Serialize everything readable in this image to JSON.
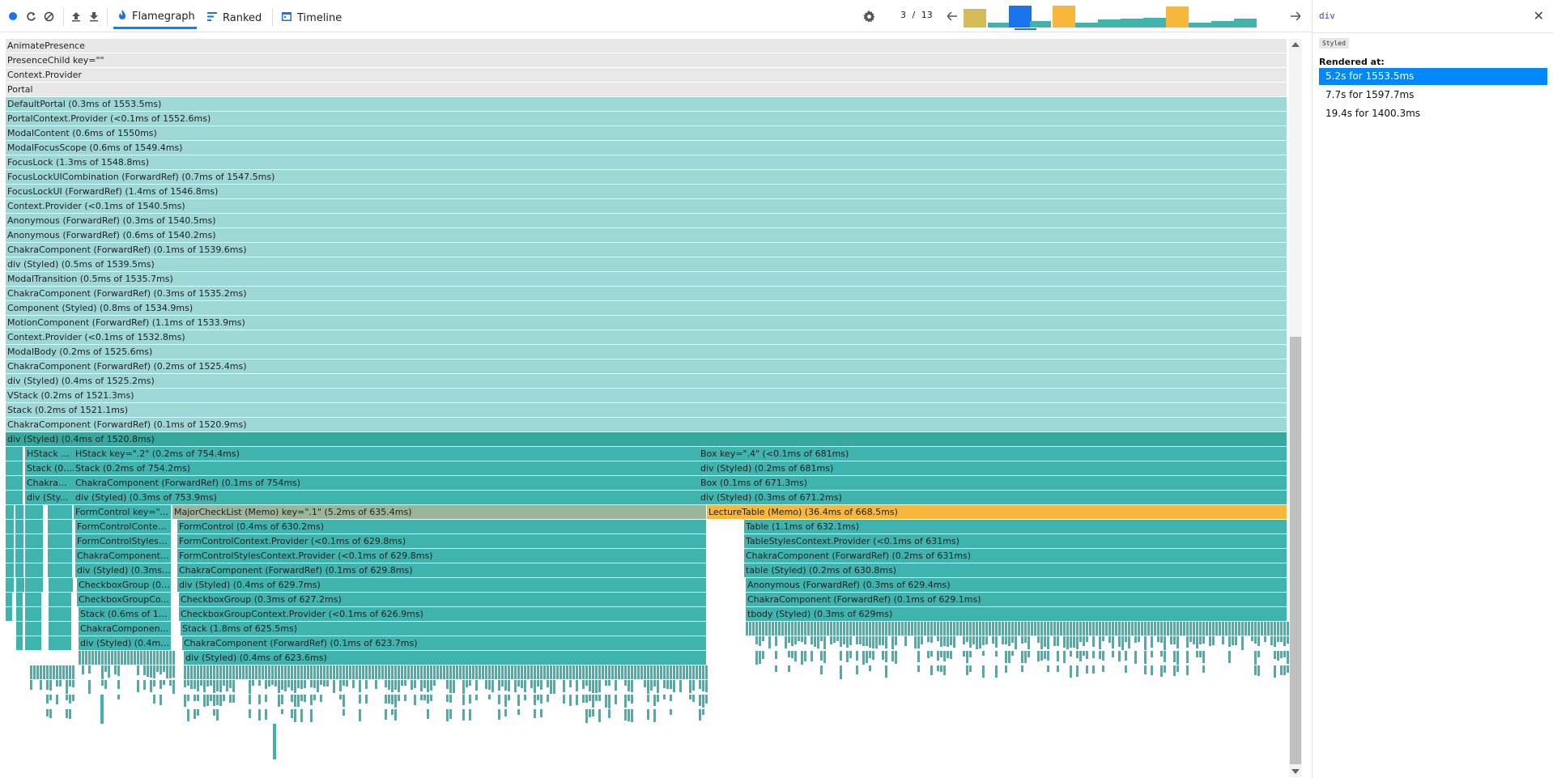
{
  "toolbar": {
    "tabs": [
      {
        "label": "Flamegraph",
        "active": true
      },
      {
        "label": "Ranked",
        "active": false
      },
      {
        "label": "Timeline",
        "active": false
      }
    ],
    "commit_index": "3",
    "commit_separator": "/",
    "commit_total": "13",
    "accent": "#0088fa"
  },
  "commit_bars": [
    {
      "color": "#d4bb5a",
      "level": 0.8
    },
    {
      "color": "#3fb3ad",
      "level": 0.1
    },
    {
      "color": "#1a73e8",
      "level": 0.95
    },
    {
      "color": "#3fb3ad",
      "level": 0.15
    },
    {
      "color": "#f6b73c",
      "level": 0.95
    },
    {
      "color": "#3fb3ad",
      "level": 0.1
    },
    {
      "color": "#3fb3ad",
      "level": 0.25
    },
    {
      "color": "#3fb3ad",
      "level": 0.3
    },
    {
      "color": "#3fb3ad",
      "level": 0.35
    },
    {
      "color": "#f6b73c",
      "level": 0.9
    },
    {
      "color": "#3fb3ad",
      "level": 0.1
    },
    {
      "color": "#3fb3ad",
      "level": 0.15
    },
    {
      "color": "#3fb3ad",
      "level": 0.3
    }
  ],
  "flame": {
    "full_rows": [
      {
        "label": "AnimatePresence",
        "style": "gray"
      },
      {
        "label": "PresenceChild key=\"\"",
        "style": "gray"
      },
      {
        "label": "Context.Provider",
        "style": "gray"
      },
      {
        "label": "Portal",
        "style": "gray"
      },
      {
        "label": "DefaultPortal (0.3ms of 1553.5ms)",
        "style": "light"
      },
      {
        "label": "PortalContext.Provider (<0.1ms of 1552.6ms)",
        "style": "light"
      },
      {
        "label": "ModalContent (0.6ms of 1550ms)",
        "style": "light"
      },
      {
        "label": "ModalFocusScope (0.6ms of 1549.4ms)",
        "style": "light"
      },
      {
        "label": "FocusLock (1.3ms of 1548.8ms)",
        "style": "light"
      },
      {
        "label": "FocusLockUICombination (ForwardRef) (0.7ms of 1547.5ms)",
        "style": "light"
      },
      {
        "label": "FocusLockUI (ForwardRef) (1.4ms of 1546.8ms)",
        "style": "light"
      },
      {
        "label": "Context.Provider (<0.1ms of 1540.5ms)",
        "style": "light"
      },
      {
        "label": "Anonymous (ForwardRef) (0.3ms of 1540.5ms)",
        "style": "light"
      },
      {
        "label": "Anonymous (ForwardRef) (0.6ms of 1540.2ms)",
        "style": "light"
      },
      {
        "label": "ChakraComponent (ForwardRef) (0.1ms of 1539.6ms)",
        "style": "light"
      },
      {
        "label": "div (Styled) (0.5ms of 1539.5ms)",
        "style": "light"
      },
      {
        "label": "ModalTransition (0.5ms of 1535.7ms)",
        "style": "light"
      },
      {
        "label": "ChakraComponent (ForwardRef) (0.3ms of 1535.2ms)",
        "style": "light"
      },
      {
        "label": "Component (Styled) (0.8ms of 1534.9ms)",
        "style": "light"
      },
      {
        "label": "MotionComponent (ForwardRef) (1.1ms of 1533.9ms)",
        "style": "light"
      },
      {
        "label": "Context.Provider (<0.1ms of 1532.8ms)",
        "style": "light"
      },
      {
        "label": "ModalBody (0.2ms of 1525.6ms)",
        "style": "light"
      },
      {
        "label": "ChakraComponent (ForwardRef) (0.2ms of 1525.4ms)",
        "style": "light"
      },
      {
        "label": "div (Styled) (0.4ms of 1525.2ms)",
        "style": "light"
      },
      {
        "label": "VStack (0.2ms of 1521.3ms)",
        "style": "light"
      },
      {
        "label": "Stack (0.2ms of 1521.1ms)",
        "style": "light"
      },
      {
        "label": "ChakraComponent (ForwardRef) (0.1ms of 1520.9ms)",
        "style": "light"
      },
      {
        "label": "div (Styled) (0.4ms of 1520.8ms)",
        "style": "dark"
      }
    ],
    "branch_rows": [
      [
        {
          "label": "",
          "style": "mid"
        },
        {
          "label": "HStack ...",
          "style": "mid"
        },
        {
          "label": "HStack key=\".2\" (0.2ms of 754.4ms)",
          "style": "mid"
        },
        {
          "label": "Box key=\".4\" (<0.1ms of 681ms)",
          "style": "mid"
        }
      ],
      [
        {
          "label": "",
          "style": "mid"
        },
        {
          "label": "Stack (0....",
          "style": "mid"
        },
        {
          "label": "Stack (0.2ms of 754.2ms)",
          "style": "mid"
        },
        {
          "label": "div (Styled) (0.2ms of 681ms)",
          "style": "mid"
        }
      ],
      [
        {
          "label": "",
          "style": "mid"
        },
        {
          "label": "Chakra...",
          "style": "mid"
        },
        {
          "label": "ChakraComponent (ForwardRef) (0.1ms of 754ms)",
          "style": "mid"
        },
        {
          "label": "Box (0.1ms of 671.3ms)",
          "style": "mid"
        }
      ],
      [
        {
          "label": "",
          "style": "mid"
        },
        {
          "label": "div (Sty...",
          "style": "mid"
        },
        {
          "label": "div (Styled) (0.3ms of 753.9ms)",
          "style": "mid"
        },
        {
          "label": "div (Styled) (0.3ms of 671.2ms)",
          "style": "mid"
        }
      ],
      [
        {
          "label": "FormControl key=\"...",
          "style": "mid"
        },
        {
          "label": "MajorCheckList (Memo) key=\".1\" (5.2ms of 635.4ms)",
          "style": "olive"
        },
        {
          "label": "LectureTable (Memo) (36.4ms of 668.5ms)",
          "style": "sel"
        }
      ],
      [
        {
          "label": "FormControlContex...",
          "style": "mid"
        },
        {
          "label": "FormControl (0.4ms of 630.2ms)",
          "style": "mid"
        },
        {
          "label": "Table (1.1ms of 632.1ms)",
          "style": "mid"
        }
      ],
      [
        {
          "label": "FormControlStylesC...",
          "style": "mid"
        },
        {
          "label": "FormControlContext.Provider (<0.1ms of 629.8ms)",
          "style": "mid"
        },
        {
          "label": "TableStylesContext.Provider (<0.1ms of 631ms)",
          "style": "mid"
        }
      ],
      [
        {
          "label": "ChakraComponent ...",
          "style": "mid"
        },
        {
          "label": "FormControlStylesContext.Provider (<0.1ms of 629.8ms)",
          "style": "mid"
        },
        {
          "label": "ChakraComponent (ForwardRef) (0.2ms of 631ms)",
          "style": "mid"
        }
      ],
      [
        {
          "label": "div (Styled) (0.3ms ...",
          "style": "mid"
        },
        {
          "label": "ChakraComponent (ForwardRef) (0.1ms of 629.8ms)",
          "style": "mid"
        },
        {
          "label": "table (Styled) (0.2ms of 630.8ms)",
          "style": "mid"
        }
      ],
      [
        {
          "label": "CheckboxGroup (0....",
          "style": "mid"
        },
        {
          "label": "div (Styled) (0.4ms of 629.7ms)",
          "style": "mid"
        },
        {
          "label": "Anonymous (ForwardRef) (0.3ms of 629.4ms)",
          "style": "mid"
        }
      ],
      [
        {
          "label": "CheckboxGroupCo...",
          "style": "mid"
        },
        {
          "label": "CheckboxGroup (0.3ms of 627.2ms)",
          "style": "mid"
        },
        {
          "label": "ChakraComponent (ForwardRef) (0.1ms of 629.1ms)",
          "style": "mid"
        }
      ],
      [
        {
          "label": "Stack (0.6ms of 11...",
          "style": "mid"
        },
        {
          "label": "CheckboxGroupContext.Provider (<0.1ms of 626.9ms)",
          "style": "mid"
        },
        {
          "label": "tbody (Styled) (0.3ms of 629ms)",
          "style": "mid"
        }
      ],
      [
        {
          "label": "ChakraComponen...",
          "style": "mid"
        },
        {
          "label": "Stack (1.8ms of 625.5ms)",
          "style": "mid"
        }
      ],
      [
        {
          "label": "div (Styled) (0.4ms...",
          "style": "mid"
        },
        {
          "label": "ChakraComponent (ForwardRef) (0.1ms of 623.7ms)",
          "style": "mid"
        }
      ],
      [
        {
          "label": "div (Styled) (0.4ms of 623.6ms)",
          "style": "mid"
        }
      ]
    ]
  },
  "sidebar": {
    "title": "div",
    "close_glyph": "✕",
    "badge": "Styled",
    "rendered_at_label": "Rendered at:",
    "renders": [
      {
        "label": "5.2s for 1553.5ms",
        "selected": true
      },
      {
        "label": "7.7s for 1597.7ms",
        "selected": false
      },
      {
        "label": "19.4s for 1400.3ms",
        "selected": false
      }
    ]
  },
  "icons": [
    "record-icon",
    "reload-icon",
    "clear-icon",
    "upload-icon",
    "download-icon",
    "flame-icon",
    "ranked-icon",
    "timeline-icon",
    "settings-icon",
    "prev-commit-icon",
    "next-commit-icon",
    "close-icon"
  ]
}
